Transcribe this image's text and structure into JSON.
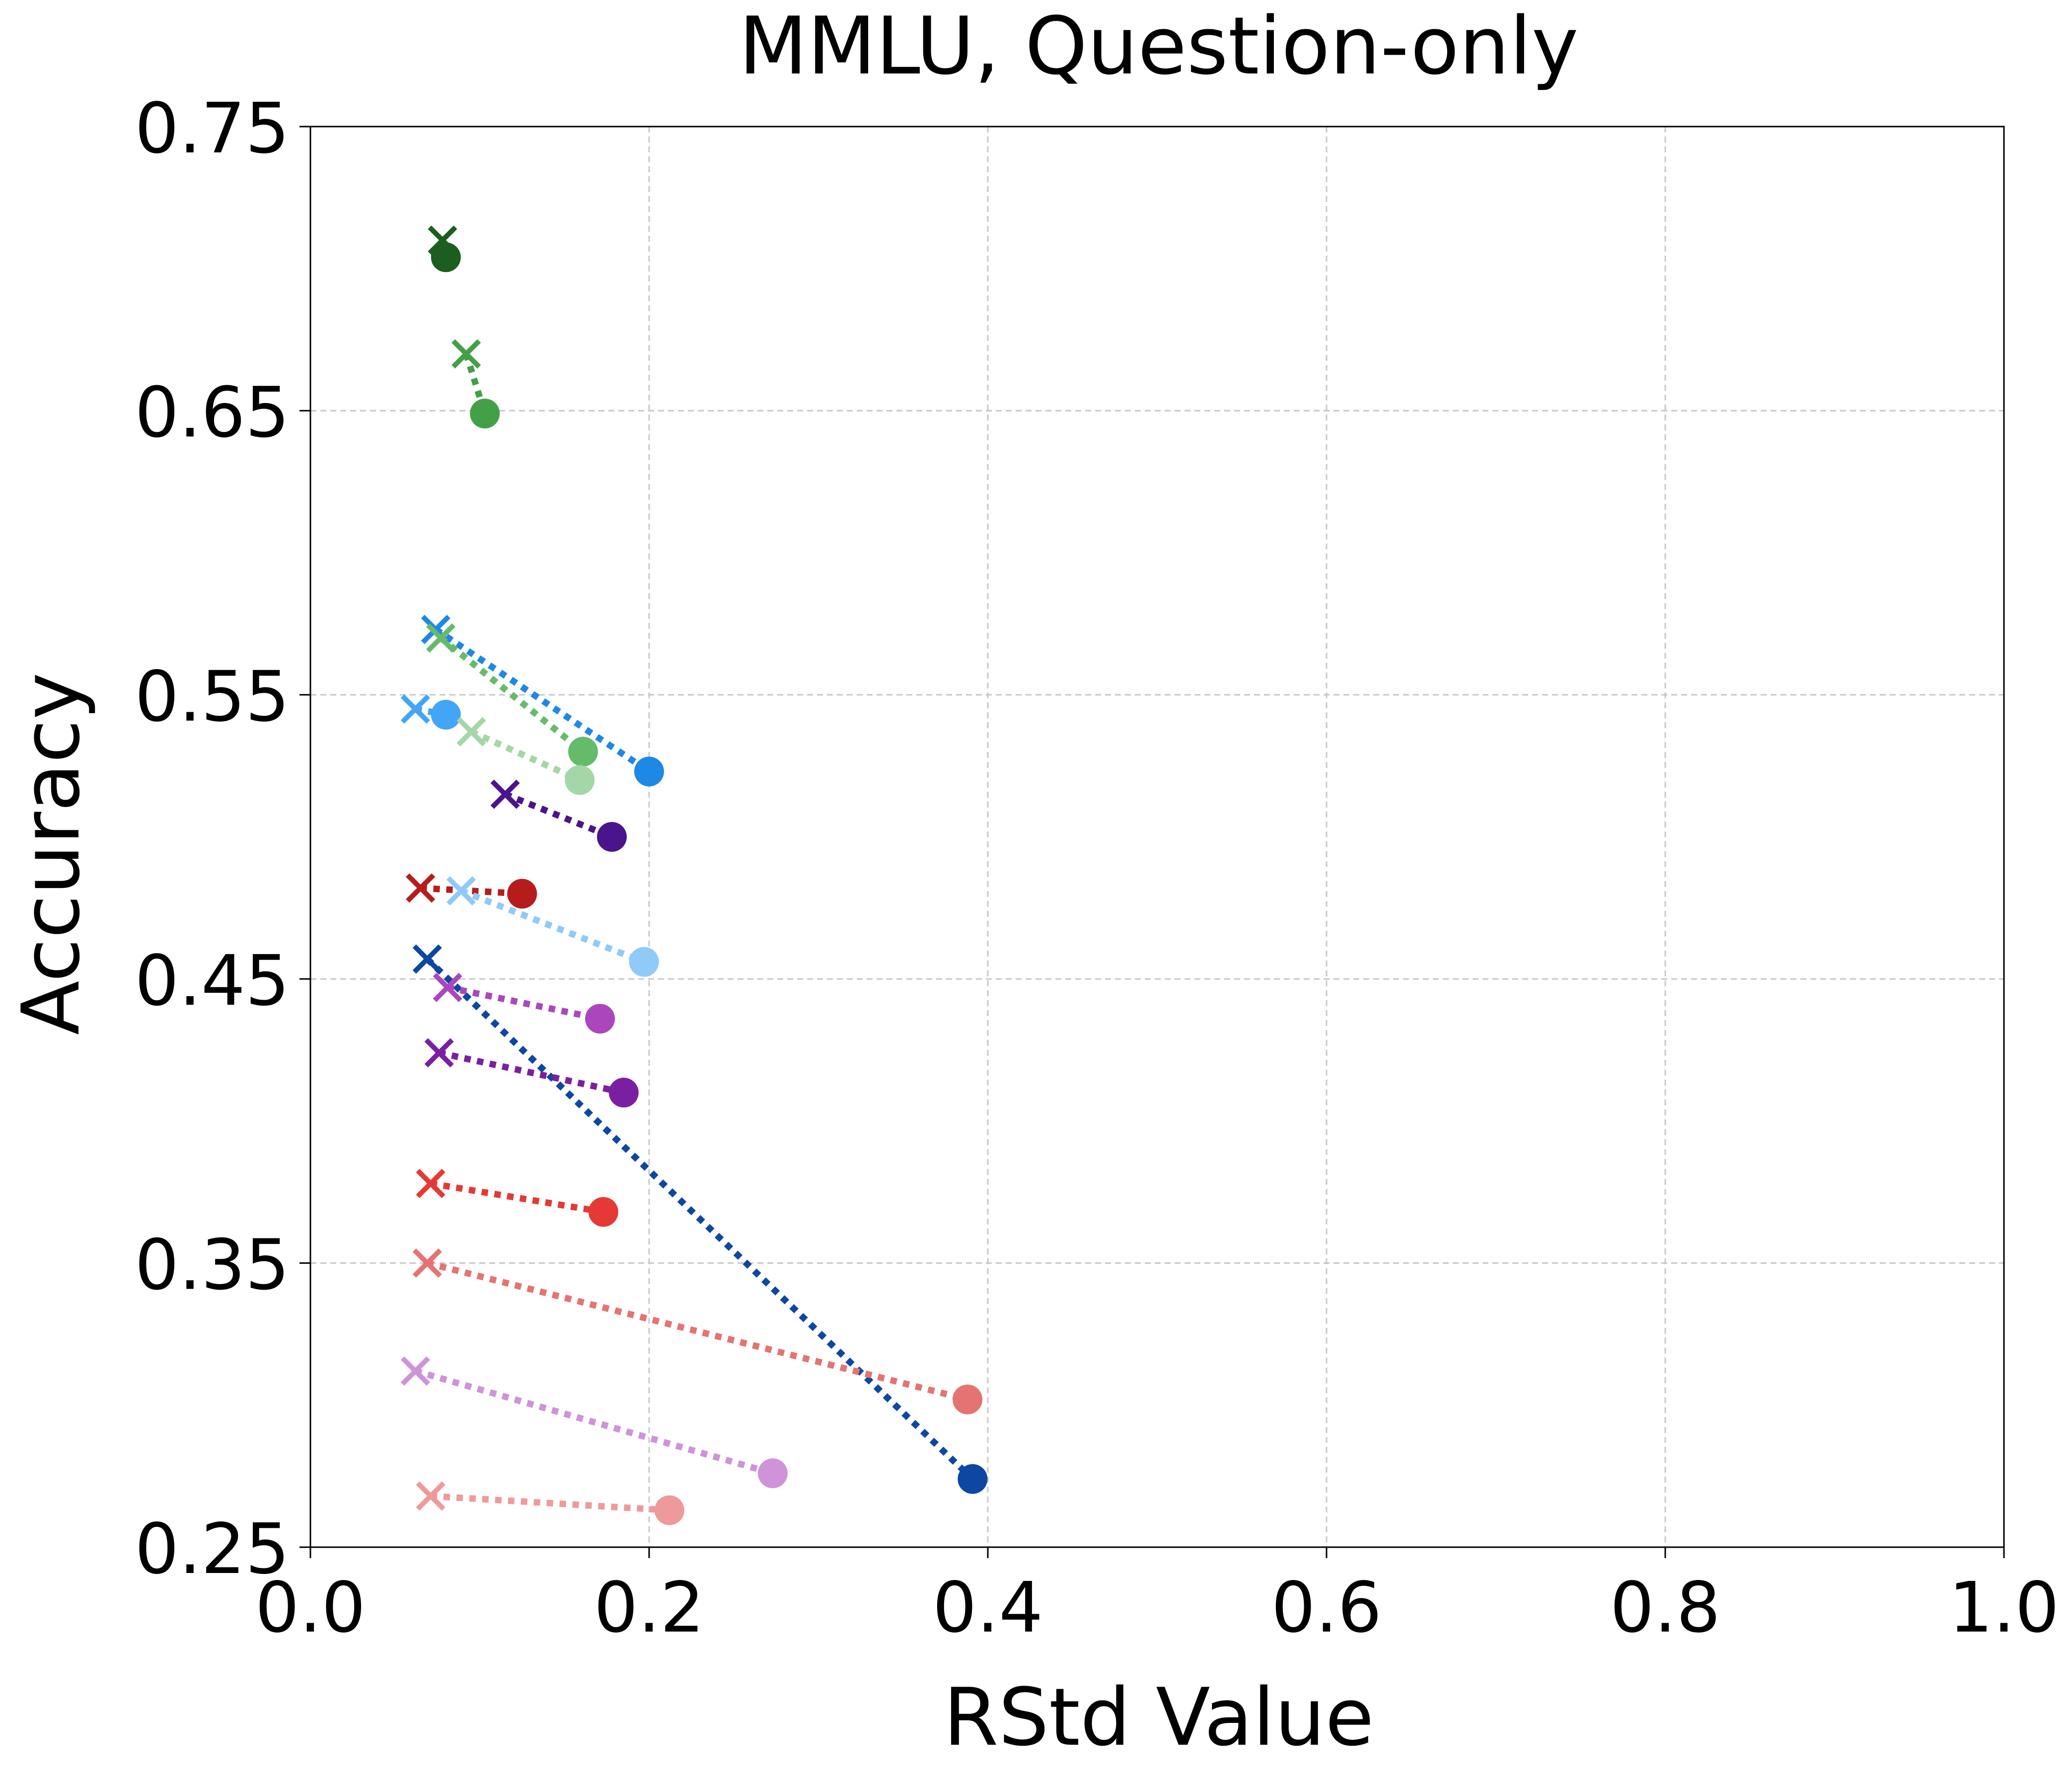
{
  "chart_data": {
    "type": "scatter",
    "title": "MMLU, Question-only",
    "xlabel": "RStd Value",
    "ylabel": "Accuracy",
    "xlim": [
      0.0,
      1.0
    ],
    "ylim": [
      0.25,
      0.75
    ],
    "xticks": [
      0.0,
      0.2,
      0.4,
      0.6,
      0.8,
      1.0
    ],
    "xtick_labels": [
      "0.0",
      "0.2",
      "0.4",
      "0.6",
      "0.8",
      "1.0"
    ],
    "yticks": [
      0.25,
      0.35,
      0.45,
      0.55,
      0.65,
      0.75
    ],
    "ytick_labels": [
      "0.25",
      "0.35",
      "0.45",
      "0.55",
      "0.65",
      "0.75"
    ],
    "grid": true,
    "legend": false,
    "markers": {
      "cross": "x",
      "dot": "o"
    },
    "series": [
      {
        "color": "#1b5e20",
        "x_values": [
          0.078,
          0.08
        ],
        "y_values": [
          0.71,
          0.704
        ]
      },
      {
        "color": "#43a047",
        "x_values": [
          0.092,
          0.103
        ],
        "y_values": [
          0.67,
          0.649
        ]
      },
      {
        "color": "#1e88e5",
        "x_values": [
          0.074,
          0.2
        ],
        "y_values": [
          0.573,
          0.523
        ]
      },
      {
        "color": "#66bb6a",
        "x_values": [
          0.077,
          0.161
        ],
        "y_values": [
          0.57,
          0.53
        ]
      },
      {
        "color": "#42a5f5",
        "x_values": [
          0.062,
          0.08
        ],
        "y_values": [
          0.545,
          0.543
        ]
      },
      {
        "color": "#a5d6a7",
        "x_values": [
          0.095,
          0.159
        ],
        "y_values": [
          0.537,
          0.52
        ]
      },
      {
        "color": "#4a148c",
        "x_values": [
          0.115,
          0.178
        ],
        "y_values": [
          0.515,
          0.5
        ]
      },
      {
        "color": "#b71c1c",
        "x_values": [
          0.065,
          0.125
        ],
        "y_values": [
          0.482,
          0.48
        ]
      },
      {
        "color": "#90caf9",
        "x_values": [
          0.089,
          0.197
        ],
        "y_values": [
          0.481,
          0.456
        ]
      },
      {
        "color": "#0d47a1",
        "x_values": [
          0.069,
          0.391
        ],
        "y_values": [
          0.457,
          0.274
        ]
      },
      {
        "color": "#ab47bc",
        "x_values": [
          0.081,
          0.171
        ],
        "y_values": [
          0.447,
          0.436
        ]
      },
      {
        "color": "#7b1fa2",
        "x_values": [
          0.076,
          0.185
        ],
        "y_values": [
          0.424,
          0.41
        ]
      },
      {
        "color": "#e53935",
        "x_values": [
          0.071,
          0.173
        ],
        "y_values": [
          0.378,
          0.368
        ]
      },
      {
        "color": "#e57373",
        "x_values": [
          0.069,
          0.388
        ],
        "y_values": [
          0.35,
          0.302
        ]
      },
      {
        "color": "#ce93d8",
        "x_values": [
          0.062,
          0.273
        ],
        "y_values": [
          0.312,
          0.276
        ]
      },
      {
        "color": "#ef9a9a",
        "x_values": [
          0.071,
          0.212
        ],
        "y_values": [
          0.268,
          0.263
        ]
      }
    ]
  }
}
